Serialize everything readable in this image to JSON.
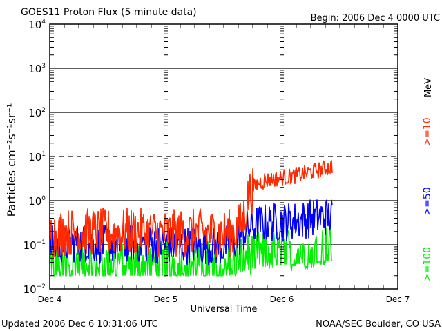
{
  "chart_data": {
    "type": "line",
    "title": "GOES11 Proton Flux (5 minute data)",
    "begin": "Begin: 2006 Dec 4 0000 UTC",
    "xlabel": "Universal Time",
    "ylabel": "Particles cm⁻²s⁻¹sr⁻¹",
    "yscale": "log",
    "ylim": [
      0.01,
      10000
    ],
    "xlim": [
      0,
      3
    ],
    "x_unit": "days since 2006 Dec 4 0000 UTC",
    "y_ticks": [
      {
        "value": 10000,
        "base": "10",
        "exp": "4"
      },
      {
        "value": 1000,
        "base": "10",
        "exp": "3"
      },
      {
        "value": 100,
        "base": "10",
        "exp": "2"
      },
      {
        "value": 10,
        "base": "10",
        "exp": "1"
      },
      {
        "value": 1,
        "base": "10",
        "exp": "0"
      },
      {
        "value": 0.1,
        "base": "10",
        "exp": "−1"
      },
      {
        "value": 0.01,
        "base": "10",
        "exp": "−2"
      }
    ],
    "x_ticks": [
      {
        "value": 0,
        "label": "Dec 4"
      },
      {
        "value": 1,
        "label": "Dec 5"
      },
      {
        "value": 2,
        "label": "Dec 6"
      },
      {
        "value": 3,
        "label": "Dec 7"
      }
    ],
    "gridlines": [
      {
        "value": 1000,
        "style": "solid"
      },
      {
        "value": 100,
        "style": "solid"
      },
      {
        "value": 10,
        "style": "dashed"
      },
      {
        "value": 1,
        "style": "solid"
      },
      {
        "value": 0.1,
        "style": "solid"
      }
    ],
    "legend_unit": "MeV",
    "series": [
      {
        "name": ">=10",
        "color": "#ff2a00",
        "x": [
          0,
          0.25,
          0.5,
          0.75,
          1.0,
          1.25,
          1.5,
          1.6,
          1.65,
          1.68,
          1.72,
          1.8,
          1.9,
          2.0,
          2.1,
          2.2,
          2.3,
          2.44
        ],
        "y": [
          0.18,
          0.2,
          0.19,
          0.2,
          0.18,
          0.19,
          0.18,
          0.2,
          0.3,
          0.5,
          1.5,
          2.6,
          3.0,
          3.3,
          3.6,
          4.2,
          4.8,
          6.0
        ]
      },
      {
        "name": ">=50",
        "color": "#0000ff",
        "x": [
          0,
          0.25,
          0.5,
          0.75,
          1.0,
          1.25,
          1.5,
          1.6,
          1.65,
          1.7,
          1.8,
          1.9,
          2.0,
          2.1,
          2.2,
          2.3,
          2.44
        ],
        "y": [
          0.1,
          0.11,
          0.1,
          0.11,
          0.1,
          0.1,
          0.09,
          0.12,
          0.16,
          0.22,
          0.3,
          0.32,
          0.33,
          0.35,
          0.38,
          0.42,
          0.45
        ]
      },
      {
        "name": ">=100",
        "color": "#00ee00",
        "x": [
          0,
          0.25,
          0.5,
          0.75,
          1.0,
          1.25,
          1.5,
          1.6,
          1.7,
          1.8,
          1.9,
          2.0,
          2.1,
          2.2,
          2.3,
          2.44
        ],
        "y": [
          0.04,
          0.045,
          0.04,
          0.045,
          0.04,
          0.042,
          0.04,
          0.05,
          0.06,
          0.07,
          0.075,
          0.08,
          0.08,
          0.085,
          0.09,
          0.1
        ]
      }
    ]
  },
  "footer": {
    "updated": "Updated 2006 Dec  6 10:31:06 UTC",
    "credit": "NOAA/SEC Boulder, CO USA"
  }
}
